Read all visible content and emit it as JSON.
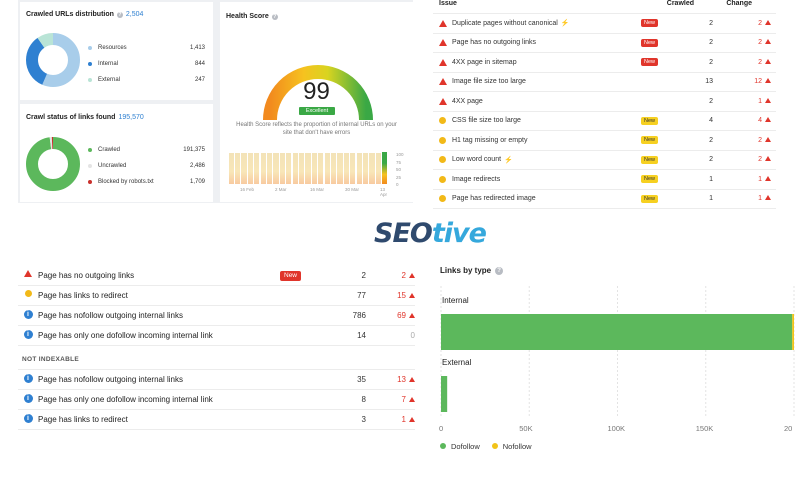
{
  "crawled_urls": {
    "title": "Crawled URLs distribution",
    "count": "2,504",
    "items": [
      {
        "label": "Resources",
        "value": "1,413",
        "num": 1413,
        "color": "#a8cdea"
      },
      {
        "label": "Internal",
        "value": "844",
        "num": 844,
        "color": "#2f80d1"
      },
      {
        "label": "External",
        "value": "247",
        "num": 247,
        "color": "#b9e4d6"
      }
    ]
  },
  "crawl_status": {
    "title": "Crawl status of links found",
    "count": "195,570",
    "items": [
      {
        "label": "Crawled",
        "value": "191,375",
        "num": 191375,
        "color": "#5cb85c"
      },
      {
        "label": "Uncrawled",
        "value": "2,486",
        "num": 2486,
        "color": "#e4e4e4"
      },
      {
        "label": "Blocked by robots.txt",
        "value": "1,709",
        "num": 1709,
        "color": "#c9302c"
      }
    ]
  },
  "health": {
    "title": "Health Score",
    "score": "99",
    "score_num": 99,
    "status": "Excellent",
    "description": "Health Score reflects the proportion of internal URLs on your site that don't have errors",
    "bars": [
      96,
      97,
      96,
      98,
      97,
      96,
      97,
      98,
      97,
      96,
      97,
      98,
      97,
      96,
      97,
      98,
      97,
      98,
      96,
      97,
      98,
      97,
      96,
      97,
      99
    ],
    "x_labels": [
      "16 Feb",
      "2 Mar",
      "16 Mar",
      "30 Mar",
      "13 Apr"
    ],
    "y_labels": [
      "100",
      "75",
      "50",
      "25",
      "0"
    ]
  },
  "issues_table": {
    "headers": {
      "issue": "Issue",
      "crawled": "Crawled",
      "change": "Change"
    },
    "rows": [
      {
        "icon": "error",
        "name": "Duplicate pages without canonical",
        "bolt": true,
        "badge": "New",
        "badge_color": "red",
        "crawled": "2",
        "change": "2"
      },
      {
        "icon": "error",
        "name": "Page has no outgoing links",
        "bolt": false,
        "badge": "New",
        "badge_color": "red",
        "crawled": "2",
        "change": "2"
      },
      {
        "icon": "error",
        "name": "4XX page in sitemap",
        "bolt": false,
        "badge": "New",
        "badge_color": "red",
        "crawled": "2",
        "change": "2"
      },
      {
        "icon": "error",
        "name": "Image file size too large",
        "bolt": false,
        "badge": "",
        "badge_color": "",
        "crawled": "13",
        "change": "12"
      },
      {
        "icon": "error",
        "name": "4XX page",
        "bolt": false,
        "badge": "",
        "badge_color": "",
        "crawled": "2",
        "change": "1"
      },
      {
        "icon": "warning",
        "name": "CSS file size too large",
        "bolt": false,
        "badge": "New",
        "badge_color": "yellow",
        "crawled": "4",
        "change": "4"
      },
      {
        "icon": "warning",
        "name": "H1 tag missing or empty",
        "bolt": false,
        "badge": "New",
        "badge_color": "yellow",
        "crawled": "2",
        "change": "2"
      },
      {
        "icon": "warning",
        "name": "Low word count",
        "bolt": true,
        "badge": "New",
        "badge_color": "yellow",
        "crawled": "2",
        "change": "2"
      },
      {
        "icon": "warning",
        "name": "Image redirects",
        "bolt": false,
        "badge": "New",
        "badge_color": "yellow",
        "crawled": "1",
        "change": "1"
      },
      {
        "icon": "warning",
        "name": "Page has redirected image",
        "bolt": false,
        "badge": "New",
        "badge_color": "yellow",
        "crawled": "1",
        "change": "1"
      }
    ]
  },
  "logo": {
    "part1": "SEO",
    "part2": "tive"
  },
  "links_list": {
    "rows": [
      {
        "icon": "error",
        "name": "Page has no outgoing links",
        "badge": "New",
        "crawled": "2",
        "change": "2",
        "up": true
      },
      {
        "icon": "warning",
        "name": "Page has links to redirect",
        "badge": "",
        "crawled": "77",
        "change": "15",
        "up": true
      },
      {
        "icon": "info",
        "name": "Page has nofollow outgoing internal links",
        "badge": "",
        "crawled": "786",
        "change": "69",
        "up": true
      },
      {
        "icon": "info",
        "name": "Page has only one dofollow incoming internal link",
        "badge": "",
        "crawled": "14",
        "change": "0",
        "up": false
      }
    ],
    "section_title": "NOT INDEXABLE",
    "rows2": [
      {
        "icon": "info",
        "name": "Page has nofollow outgoing internal links",
        "badge": "",
        "crawled": "35",
        "change": "13",
        "up": true
      },
      {
        "icon": "info",
        "name": "Page has only one dofollow incoming internal link",
        "badge": "",
        "crawled": "8",
        "change": "7",
        "up": true
      },
      {
        "icon": "info",
        "name": "Page has links to redirect",
        "badge": "",
        "crawled": "3",
        "change": "1",
        "up": true
      }
    ]
  },
  "chart_data": {
    "type": "bar",
    "orientation": "horizontal",
    "stacked": true,
    "title": "Links by type",
    "categories": [
      "Internal",
      "External"
    ],
    "series": [
      {
        "name": "Dofollow",
        "values": [
          199000,
          3500
        ],
        "color": "#5cb85c"
      },
      {
        "name": "Nofollow",
        "values": [
          1000,
          0
        ],
        "color": "#f2c318"
      }
    ],
    "xlim": [
      0,
      200000
    ],
    "x_ticks": [
      "0",
      "50K",
      "100K",
      "150K",
      "20"
    ],
    "grid": true,
    "legend": "bottom-left"
  }
}
